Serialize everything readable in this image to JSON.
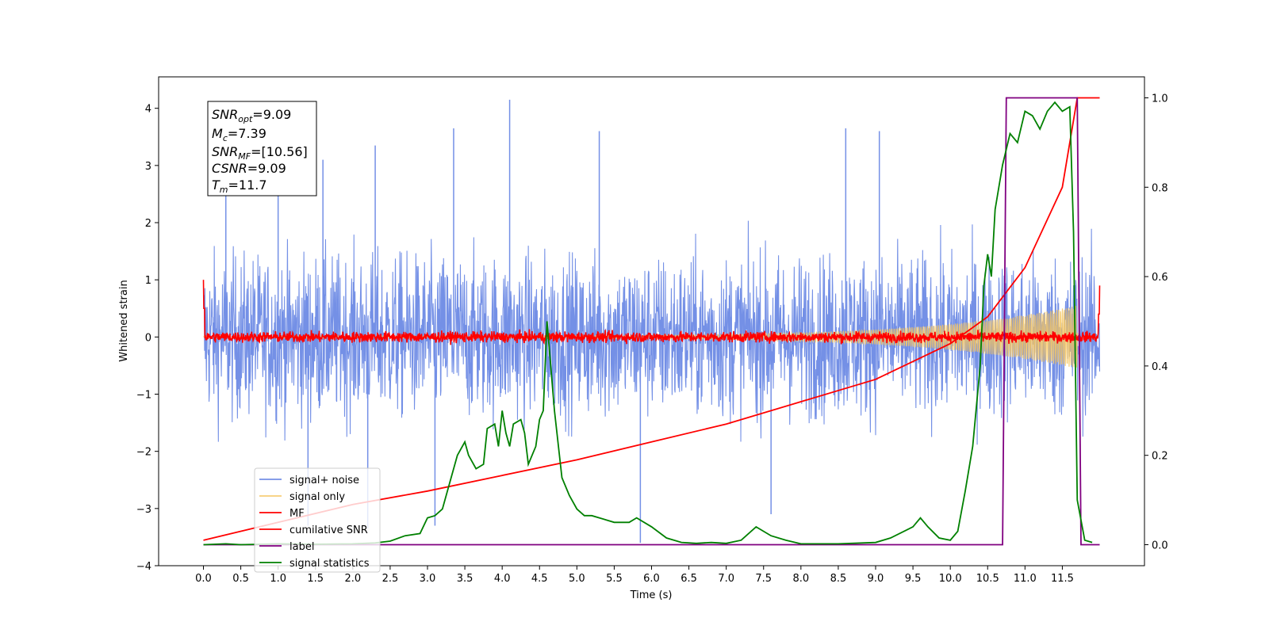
{
  "chart_data": {
    "type": "line",
    "xlabel": "Time (s)",
    "ylabel_left": "Whitened strain",
    "ylabel_right": "",
    "xlim": [
      -0.6,
      12.6
    ],
    "ylim_left": [
      -4.0,
      4.55
    ],
    "ylim_right": [
      -0.047,
      1.047
    ],
    "x_ticks": [
      0.0,
      0.5,
      1.0,
      1.5,
      2.0,
      2.5,
      3.0,
      3.5,
      4.0,
      4.5,
      5.0,
      5.5,
      6.0,
      6.5,
      7.0,
      7.5,
      8.0,
      8.5,
      9.0,
      9.5,
      10.0,
      10.5,
      11.0,
      11.5
    ],
    "x_tick_labels": [
      "0.0",
      "0.5",
      "1.0",
      "1.5",
      "2.0",
      "2.5",
      "3.0",
      "3.5",
      "4.0",
      "4.5",
      "5.0",
      "5.5",
      "6.0",
      "6.5",
      "7.0",
      "7.5",
      "8.0",
      "8.5",
      "9.0",
      "9.5",
      "10.0",
      "10.5",
      "11.0",
      "11.5"
    ],
    "y_left_ticks": [
      -4,
      -3,
      -2,
      -1,
      0,
      1,
      2,
      3,
      4
    ],
    "y_left_tick_labels": [
      "−4",
      "−3",
      "−2",
      "−1",
      "0",
      "1",
      "2",
      "3",
      "4"
    ],
    "y_right_ticks": [
      0.0,
      0.2,
      0.4,
      0.6,
      0.8,
      1.0
    ],
    "y_right_tick_labels": [
      "0.0",
      "0.2",
      "0.4",
      "0.6",
      "0.8",
      "1.0"
    ],
    "grid": false,
    "legend_position": "lower-left",
    "stats_box": {
      "snr_opt": {
        "sym": "SNR",
        "sub": "opt",
        "value": "=9.09"
      },
      "mc": {
        "sym": "M",
        "sub": "c",
        "value": "=7.39"
      },
      "snr_mf": {
        "sym": "SNR",
        "sub": "MF",
        "value": "=[10.56]"
      },
      "csnr": {
        "sym": "CSNR",
        "sub": "",
        "value": "=9.09"
      },
      "tm": {
        "sym": "T",
        "sub": "m",
        "value": "=11.7"
      }
    },
    "series": [
      {
        "name": "signal+ noise",
        "color": "#7490e6",
        "axis": "left",
        "t_start": 0.0,
        "t_end": 12.0,
        "envelope": [
          -3.6,
          4.15
        ],
        "typical_amplitude": 1.0,
        "peaks": [
          [
            0.3,
            2.9
          ],
          [
            1.0,
            2.9
          ],
          [
            1.6,
            3.1
          ],
          [
            2.3,
            3.35
          ],
          [
            3.35,
            3.65
          ],
          [
            4.1,
            4.15
          ],
          [
            5.3,
            3.6
          ],
          [
            8.6,
            3.65
          ],
          [
            9.05,
            3.6
          ],
          [
            1.4,
            -3.3
          ],
          [
            2.2,
            -3.35
          ],
          [
            3.1,
            -3.3
          ],
          [
            5.85,
            -3.6
          ],
          [
            7.6,
            -3.1
          ]
        ]
      },
      {
        "name": "signal only",
        "color": "#f5c45e",
        "axis": "left",
        "t_start": 0.0,
        "t_end": 11.7,
        "chirp_amplitude_start": 0.02,
        "chirp_amplitude_end": 0.55
      },
      {
        "name": "MF",
        "color": "#ff0000",
        "axis": "left",
        "t_start": 0.0,
        "t_end": 12.0,
        "typical_amplitude": 0.12
      },
      {
        "name": "cumilative SNR",
        "color": "#ff0000",
        "axis": "right",
        "points": [
          [
            0.0,
            0.01
          ],
          [
            1.0,
            0.05
          ],
          [
            2.0,
            0.09
          ],
          [
            3.0,
            0.12
          ],
          [
            4.0,
            0.155
          ],
          [
            5.0,
            0.19
          ],
          [
            6.0,
            0.23
          ],
          [
            7.0,
            0.27
          ],
          [
            8.0,
            0.32
          ],
          [
            9.0,
            0.37
          ],
          [
            10.0,
            0.45
          ],
          [
            10.5,
            0.51
          ],
          [
            11.0,
            0.62
          ],
          [
            11.5,
            0.8
          ],
          [
            11.7,
            1.0
          ],
          [
            12.0,
            1.0
          ]
        ]
      },
      {
        "name": "label",
        "color": "#800080",
        "axis": "right",
        "points": [
          [
            0.0,
            0.0
          ],
          [
            10.7,
            0.0
          ],
          [
            10.75,
            1.0
          ],
          [
            11.7,
            1.0
          ],
          [
            11.75,
            0.0
          ],
          [
            12.0,
            0.0
          ]
        ]
      },
      {
        "name": "signal statistics",
        "color": "#008000",
        "axis": "right",
        "points": [
          [
            0.0,
            0.0
          ],
          [
            0.3,
            0.002
          ],
          [
            0.5,
            0.0
          ],
          [
            1.0,
            0.002
          ],
          [
            1.5,
            0.001
          ],
          [
            2.0,
            0.002
          ],
          [
            2.3,
            0.004
          ],
          [
            2.5,
            0.008
          ],
          [
            2.7,
            0.02
          ],
          [
            2.9,
            0.025
          ],
          [
            3.0,
            0.06
          ],
          [
            3.1,
            0.065
          ],
          [
            3.2,
            0.08
          ],
          [
            3.3,
            0.14
          ],
          [
            3.4,
            0.2
          ],
          [
            3.5,
            0.23
          ],
          [
            3.55,
            0.2
          ],
          [
            3.65,
            0.17
          ],
          [
            3.75,
            0.18
          ],
          [
            3.8,
            0.26
          ],
          [
            3.9,
            0.27
          ],
          [
            3.95,
            0.22
          ],
          [
            4.0,
            0.3
          ],
          [
            4.05,
            0.25
          ],
          [
            4.1,
            0.22
          ],
          [
            4.15,
            0.27
          ],
          [
            4.25,
            0.28
          ],
          [
            4.3,
            0.25
          ],
          [
            4.35,
            0.18
          ],
          [
            4.45,
            0.22
          ],
          [
            4.5,
            0.28
          ],
          [
            4.55,
            0.3
          ],
          [
            4.6,
            0.5
          ],
          [
            4.7,
            0.3
          ],
          [
            4.8,
            0.15
          ],
          [
            4.9,
            0.11
          ],
          [
            5.0,
            0.08
          ],
          [
            5.1,
            0.065
          ],
          [
            5.2,
            0.065
          ],
          [
            5.3,
            0.06
          ],
          [
            5.5,
            0.05
          ],
          [
            5.7,
            0.05
          ],
          [
            5.8,
            0.06
          ],
          [
            6.0,
            0.04
          ],
          [
            6.2,
            0.015
          ],
          [
            6.4,
            0.005
          ],
          [
            6.6,
            0.003
          ],
          [
            6.8,
            0.005
          ],
          [
            7.0,
            0.003
          ],
          [
            7.2,
            0.01
          ],
          [
            7.4,
            0.04
          ],
          [
            7.6,
            0.02
          ],
          [
            7.8,
            0.01
          ],
          [
            8.0,
            0.002
          ],
          [
            8.5,
            0.002
          ],
          [
            9.0,
            0.005
          ],
          [
            9.2,
            0.015
          ],
          [
            9.5,
            0.04
          ],
          [
            9.6,
            0.06
          ],
          [
            9.7,
            0.04
          ],
          [
            9.85,
            0.015
          ],
          [
            10.0,
            0.01
          ],
          [
            10.1,
            0.03
          ],
          [
            10.2,
            0.12
          ],
          [
            10.3,
            0.22
          ],
          [
            10.4,
            0.4
          ],
          [
            10.45,
            0.58
          ],
          [
            10.5,
            0.65
          ],
          [
            10.55,
            0.6
          ],
          [
            10.6,
            0.75
          ],
          [
            10.7,
            0.85
          ],
          [
            10.8,
            0.92
          ],
          [
            10.9,
            0.9
          ],
          [
            11.0,
            0.97
          ],
          [
            11.1,
            0.96
          ],
          [
            11.2,
            0.93
          ],
          [
            11.3,
            0.97
          ],
          [
            11.4,
            0.99
          ],
          [
            11.5,
            0.97
          ],
          [
            11.6,
            0.98
          ],
          [
            11.65,
            0.7
          ],
          [
            11.7,
            0.1
          ],
          [
            11.8,
            0.01
          ],
          [
            11.9,
            0.005
          ]
        ]
      }
    ]
  }
}
